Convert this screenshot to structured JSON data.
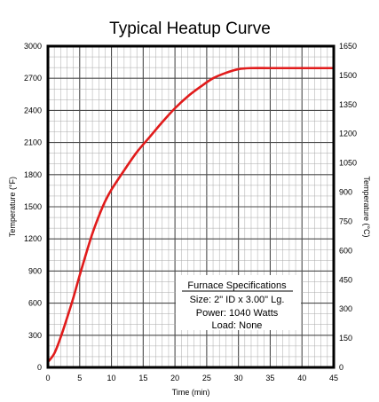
{
  "chart_data": {
    "type": "line",
    "title": "Typical Heatup Curve",
    "xlabel": "Time (min)",
    "ylabel": "Temperature (°F)",
    "y2label": "Temperature (°C)",
    "xlim": [
      0,
      45
    ],
    "ylim": [
      0,
      3000
    ],
    "y2lim": [
      0,
      1650
    ],
    "x_ticks": [
      0,
      5,
      10,
      15,
      20,
      25,
      30,
      35,
      40,
      45
    ],
    "y_ticks": [
      0,
      300,
      600,
      900,
      1200,
      1500,
      1800,
      2100,
      2400,
      2700,
      3000
    ],
    "y2_ticks": [
      0,
      150,
      300,
      450,
      600,
      750,
      900,
      1050,
      1200,
      1350,
      1500,
      1650
    ],
    "grid": true,
    "line_color": "#e11b1b",
    "series": [
      {
        "x": [
          0,
          1,
          2,
          3,
          4,
          5,
          6,
          7,
          8,
          9,
          10,
          12,
          14,
          16,
          18,
          20,
          22,
          24,
          26,
          28,
          30,
          32,
          35,
          40,
          45
        ],
        "values": [
          50,
          130,
          280,
          460,
          650,
          860,
          1060,
          1250,
          1410,
          1550,
          1660,
          1840,
          2010,
          2150,
          2290,
          2420,
          2530,
          2620,
          2700,
          2750,
          2785,
          2795,
          2795,
          2795,
          2795
        ]
      }
    ]
  },
  "specs": {
    "heading": "Furnace Specifications",
    "size": "Size: 2\" ID x 3.00\" Lg.",
    "power": "Power: 1040 Watts",
    "load": "Load: None"
  }
}
